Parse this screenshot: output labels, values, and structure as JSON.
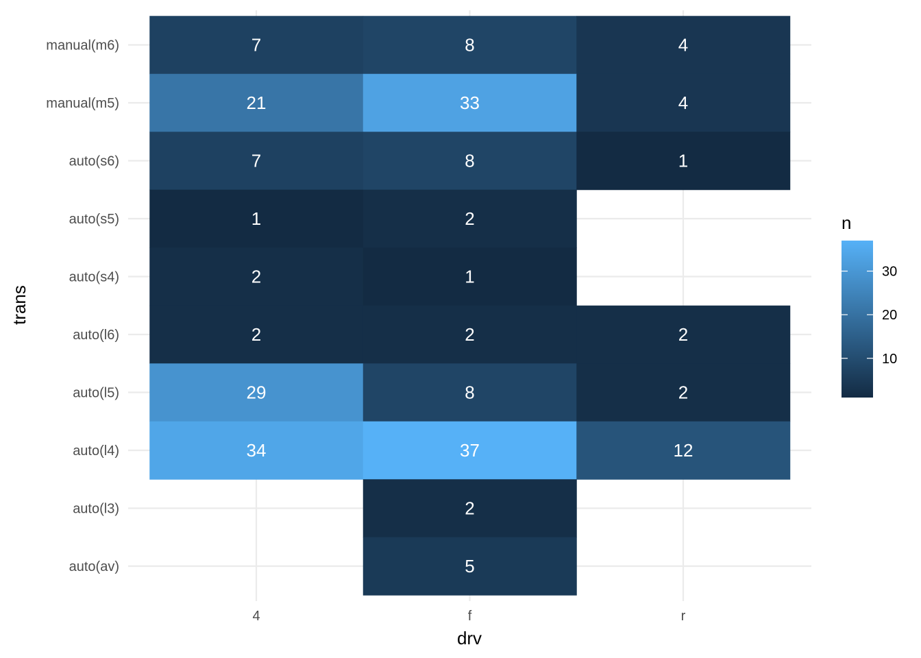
{
  "chart_data": {
    "type": "heatmap",
    "x_categories": [
      "4",
      "f",
      "r"
    ],
    "y_categories": [
      "auto(av)",
      "auto(l3)",
      "auto(l4)",
      "auto(l5)",
      "auto(l6)",
      "auto(s4)",
      "auto(s5)",
      "auto(s6)",
      "manual(m5)",
      "manual(m6)"
    ],
    "cells": [
      {
        "x": "4",
        "y": "manual(m6)",
        "value": 7
      },
      {
        "x": "f",
        "y": "manual(m6)",
        "value": 8
      },
      {
        "x": "r",
        "y": "manual(m6)",
        "value": 4
      },
      {
        "x": "4",
        "y": "manual(m5)",
        "value": 21
      },
      {
        "x": "f",
        "y": "manual(m5)",
        "value": 33
      },
      {
        "x": "r",
        "y": "manual(m5)",
        "value": 4
      },
      {
        "x": "4",
        "y": "auto(s6)",
        "value": 7
      },
      {
        "x": "f",
        "y": "auto(s6)",
        "value": 8
      },
      {
        "x": "r",
        "y": "auto(s6)",
        "value": 1
      },
      {
        "x": "4",
        "y": "auto(s5)",
        "value": 1
      },
      {
        "x": "f",
        "y": "auto(s5)",
        "value": 2
      },
      {
        "x": "4",
        "y": "auto(s4)",
        "value": 2
      },
      {
        "x": "f",
        "y": "auto(s4)",
        "value": 1
      },
      {
        "x": "4",
        "y": "auto(l6)",
        "value": 2
      },
      {
        "x": "f",
        "y": "auto(l6)",
        "value": 2
      },
      {
        "x": "r",
        "y": "auto(l6)",
        "value": 2
      },
      {
        "x": "4",
        "y": "auto(l5)",
        "value": 29
      },
      {
        "x": "f",
        "y": "auto(l5)",
        "value": 8
      },
      {
        "x": "r",
        "y": "auto(l5)",
        "value": 2
      },
      {
        "x": "4",
        "y": "auto(l4)",
        "value": 34
      },
      {
        "x": "f",
        "y": "auto(l4)",
        "value": 37
      },
      {
        "x": "r",
        "y": "auto(l4)",
        "value": 12
      },
      {
        "x": "f",
        "y": "auto(l3)",
        "value": 2
      },
      {
        "x": "f",
        "y": "auto(av)",
        "value": 5
      }
    ],
    "xlabel": "drv",
    "ylabel": "trans",
    "legend": {
      "title": "n",
      "ticks": [
        10,
        20,
        30
      ],
      "range": [
        1,
        37
      ],
      "placement": "right"
    },
    "colors": {
      "low": "#132b43",
      "high": "#56b1f7",
      "grid": "#ebebeb",
      "cell_text": "#ffffff"
    },
    "grid": true
  }
}
